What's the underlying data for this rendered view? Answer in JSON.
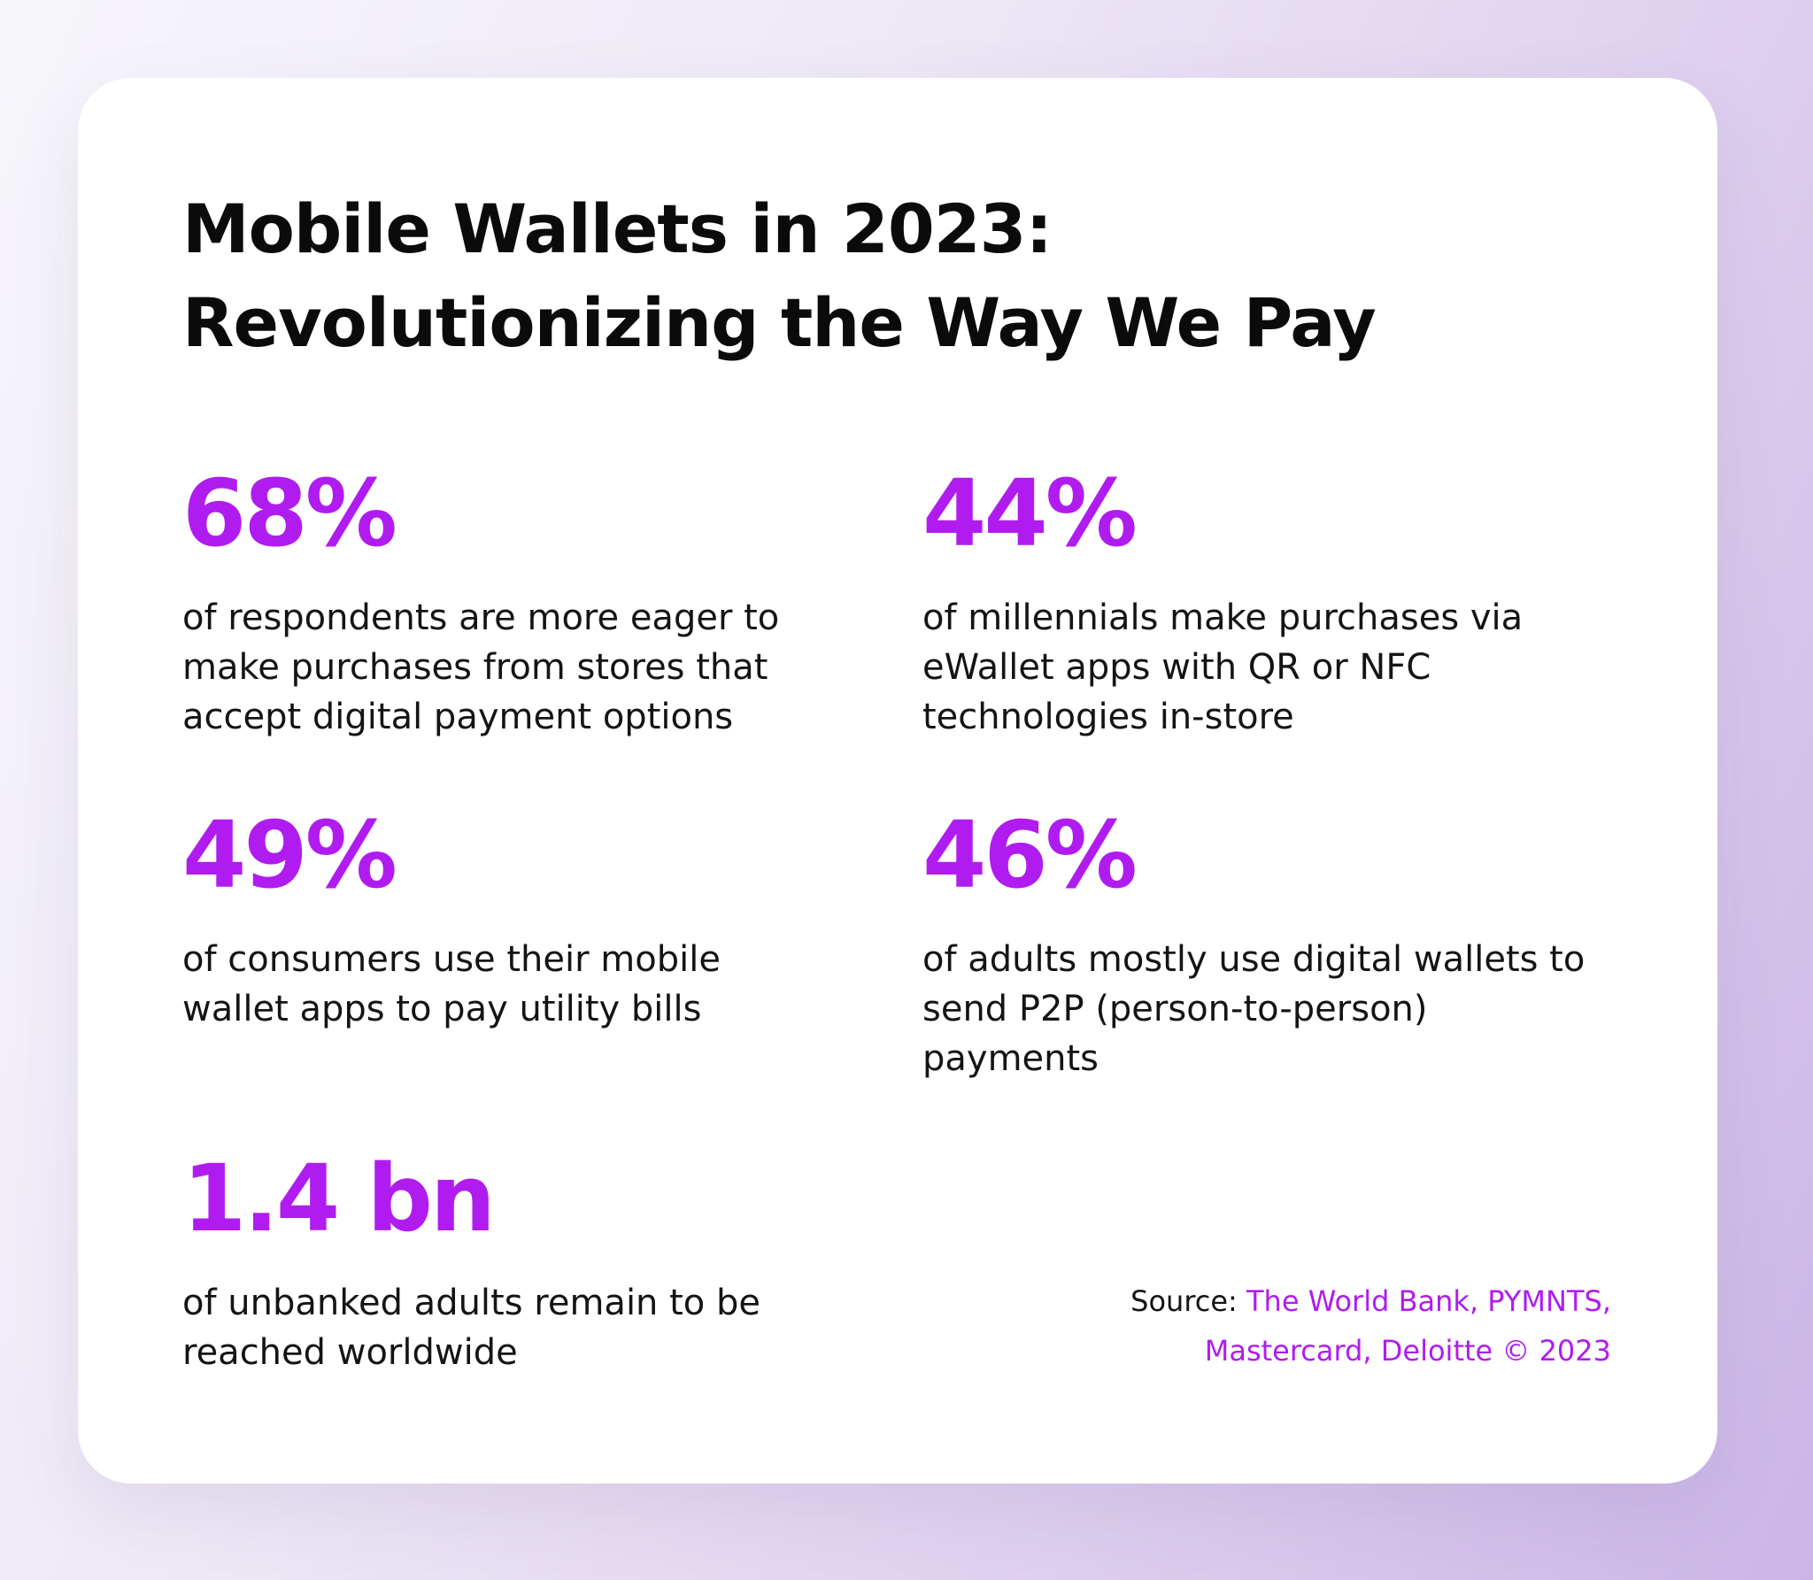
{
  "title": {
    "line1": "Mobile Wallets in 2023:",
    "line2": "Revolutionizing the Way We Pay"
  },
  "stats": [
    {
      "value": "68%",
      "lines": [
        "of respondents are more eager to",
        "make purchases from stores that",
        "accept digital payment options"
      ]
    },
    {
      "value": "44%",
      "lines": [
        "of millennials make purchases via",
        "eWallet apps with QR or NFC",
        "technologies in-store"
      ]
    },
    {
      "value": "49%",
      "lines": [
        "of consumers use their mobile",
        "wallet apps to pay utility bills"
      ]
    },
    {
      "value": "46%",
      "lines": [
        "of adults mostly use digital wallets to",
        "send P2P (person-to-person)",
        "payments"
      ]
    },
    {
      "value": "1.4 bn",
      "lines": [
        "of unbanked adults remain to be",
        "reached worldwide"
      ]
    }
  ],
  "source": {
    "label": "Source: ",
    "line1_accent": "The World Bank, PYMNTS,",
    "line2_accent": "Mastercard, Deloitte © 2023"
  },
  "colors": {
    "accent": "#b01cf0",
    "text": "#0b0b0b",
    "card": "#ffffff"
  }
}
